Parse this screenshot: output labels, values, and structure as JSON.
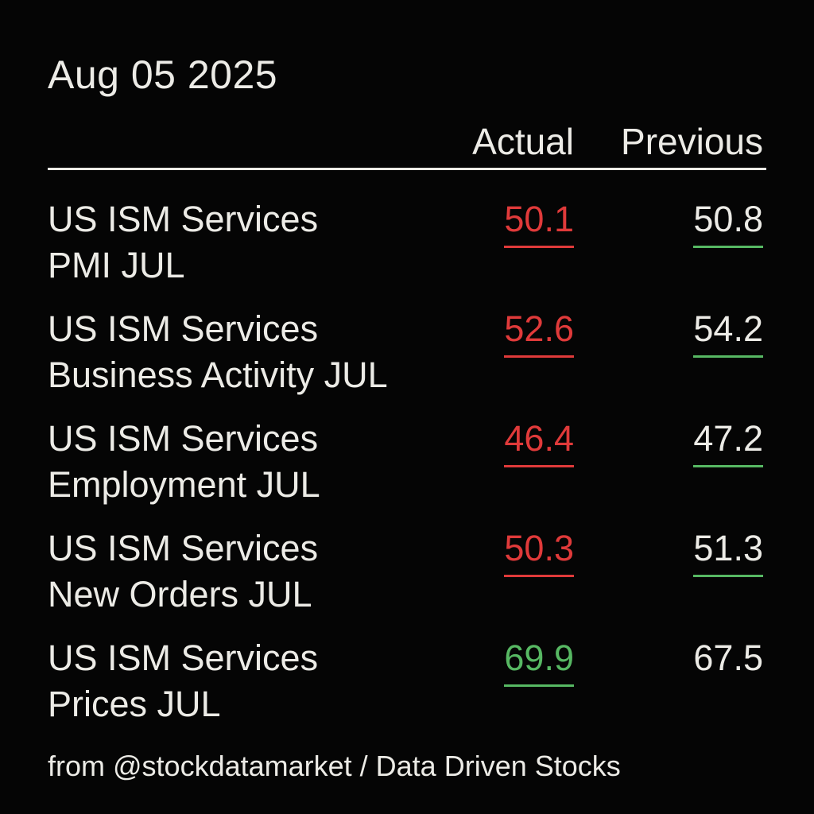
{
  "date": "Aug 05 2025",
  "columns": {
    "actual": "Actual",
    "previous": "Previous"
  },
  "rows": [
    {
      "label_line1": "US ISM Services",
      "label_line2": "PMI JUL",
      "actual": "50.1",
      "previous": "50.8",
      "actual_color": "#e03a3a",
      "previous_underline_color": "#57b863"
    },
    {
      "label_line1": "US ISM Services",
      "label_line2": "Business Activity JUL",
      "actual": "52.6",
      "previous": "54.2",
      "actual_color": "#e03a3a",
      "previous_underline_color": "#57b863"
    },
    {
      "label_line1": "US ISM Services",
      "label_line2": "Employment JUL",
      "actual": "46.4",
      "previous": "47.2",
      "actual_color": "#e03a3a",
      "previous_underline_color": "#57b863"
    },
    {
      "label_line1": "US ISM Services",
      "label_line2": "New Orders JUL",
      "actual": "50.3",
      "previous": "51.3",
      "actual_color": "#e03a3a",
      "previous_underline_color": "#57b863"
    },
    {
      "label_line1": "US ISM Services",
      "label_line2": "Prices JUL",
      "actual": "69.9",
      "previous": "67.5",
      "actual_color": "#57b863",
      "previous_underline_color": ""
    }
  ],
  "footer": "from @stockdatamarket / Data Driven Stocks"
}
